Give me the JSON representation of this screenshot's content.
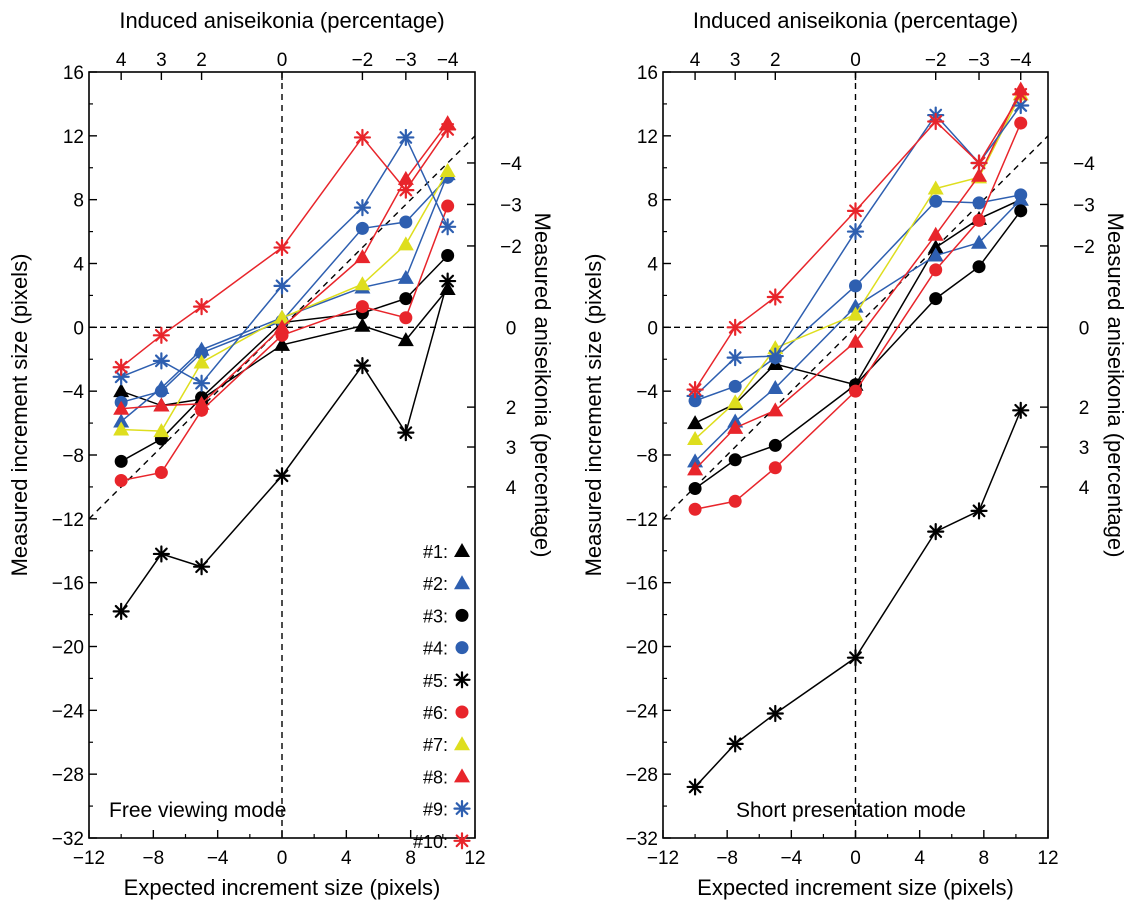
{
  "chart_data": [
    {
      "type": "line",
      "mode_label": "Free viewing mode",
      "xlabel": "Expected increment size (pixels)",
      "ylabel": "Measured increment size (pixels)",
      "top_xlabel": "Induced aniseikonia (percentage)",
      "right_ylabel": "Measured aniseikonia (percentage)",
      "xlim": [
        -12,
        12
      ],
      "ylim": [
        -32,
        16
      ],
      "x_ticks": [
        "-12",
        "-8",
        "-4",
        "0",
        "4",
        "8",
        "12"
      ],
      "y_ticks": [
        "16",
        "12",
        "8",
        "4",
        "0",
        "-4",
        "-8",
        "-12",
        "-16",
        "-20",
        "-24",
        "-28",
        "-32"
      ],
      "top_ticks": [
        {
          "x": -10.0,
          "label": "4"
        },
        {
          "x": -7.5,
          "label": "3"
        },
        {
          "x": -5.0,
          "label": "2"
        },
        {
          "x": 0,
          "label": "0"
        },
        {
          "x": 5.0,
          "label": "-2"
        },
        {
          "x": 7.7,
          "label": "-3"
        },
        {
          "x": 10.3,
          "label": "-4"
        }
      ],
      "right_ticks": [
        {
          "y": 10.3,
          "label": "-4"
        },
        {
          "y": 7.7,
          "label": "-3"
        },
        {
          "y": 5.1,
          "label": "-2"
        },
        {
          "y": 0,
          "label": "0"
        },
        {
          "y": -5.0,
          "label": "2"
        },
        {
          "y": -7.5,
          "label": "3"
        },
        {
          "y": -10.0,
          "label": "4"
        }
      ],
      "x": [
        -10.0,
        -7.5,
        -5.0,
        0,
        5.0,
        7.7,
        10.3
      ],
      "reference_lines": [
        "x=0",
        "y=0",
        "y=x"
      ],
      "series": [
        {
          "name": "#1:",
          "marker": "triangle",
          "color": "#000000",
          "values": [
            -4.0,
            -4.9,
            -4.5,
            -1.1,
            0.1,
            -0.8,
            2.4
          ]
        },
        {
          "name": "#2:",
          "marker": "triangle",
          "color": "#2e5fb0",
          "values": [
            -5.9,
            -3.8,
            -1.4,
            0.6,
            2.5,
            3.1,
            9.6
          ]
        },
        {
          "name": "#3:",
          "marker": "circle",
          "color": "#000000",
          "values": [
            -8.4,
            -7.0,
            -4.4,
            0.3,
            0.9,
            1.8,
            4.5
          ]
        },
        {
          "name": "#4:",
          "marker": "circle",
          "color": "#2e5fb0",
          "values": [
            -4.7,
            -4.0,
            -1.6,
            0.4,
            6.2,
            6.6,
            9.4
          ]
        },
        {
          "name": "#5:",
          "marker": "asterisk",
          "color": "#000000",
          "values": [
            -17.8,
            -14.2,
            -15.0,
            -9.3,
            -2.4,
            -6.6,
            2.9
          ]
        },
        {
          "name": "#6:",
          "marker": "circle",
          "color": "#e8252b",
          "values": [
            -9.6,
            -9.1,
            -5.2,
            -0.5,
            1.3,
            0.6,
            7.6
          ]
        },
        {
          "name": "#7:",
          "marker": "triangle",
          "color": "#dede1e",
          "values": [
            -6.4,
            -6.5,
            -2.2,
            0.6,
            2.7,
            5.2,
            9.8
          ]
        },
        {
          "name": "#8:",
          "marker": "triangle",
          "color": "#e8252b",
          "values": [
            -5.1,
            -4.9,
            -4.8,
            0.0,
            4.4,
            9.3,
            12.8
          ]
        },
        {
          "name": "#9:",
          "marker": "asterisk",
          "color": "#2e5fb0",
          "values": [
            -3.1,
            -2.1,
            -3.5,
            2.6,
            7.5,
            11.9,
            6.3
          ]
        },
        {
          "name": "#10:",
          "marker": "asterisk",
          "color": "#e8252b",
          "values": [
            -2.5,
            -0.5,
            1.3,
            5.0,
            11.9,
            8.6,
            12.4
          ]
        }
      ]
    },
    {
      "type": "line",
      "mode_label": "Short presentation mode",
      "xlabel": "Expected increment size (pixels)",
      "ylabel": "Measured increment size (pixels)",
      "top_xlabel": "Induced aniseikonia (percentage)",
      "right_ylabel": "Measured aniseikonia (percentage)",
      "xlim": [
        -12,
        12
      ],
      "ylim": [
        -32,
        16
      ],
      "x_ticks": [
        "-12",
        "-8",
        "-4",
        "0",
        "4",
        "8",
        "12"
      ],
      "y_ticks": [
        "16",
        "12",
        "8",
        "4",
        "0",
        "-4",
        "-8",
        "-12",
        "-16",
        "-20",
        "-24",
        "-28",
        "-32"
      ],
      "top_ticks": [
        {
          "x": -10.0,
          "label": "4"
        },
        {
          "x": -7.5,
          "label": "3"
        },
        {
          "x": -5.0,
          "label": "2"
        },
        {
          "x": 0,
          "label": "0"
        },
        {
          "x": 5.0,
          "label": "-2"
        },
        {
          "x": 7.7,
          "label": "-3"
        },
        {
          "x": 10.3,
          "label": "-4"
        }
      ],
      "right_ticks": [
        {
          "y": 10.3,
          "label": "-4"
        },
        {
          "y": 7.7,
          "label": "-3"
        },
        {
          "y": 5.1,
          "label": "-2"
        },
        {
          "y": 0,
          "label": "0"
        },
        {
          "y": -5.0,
          "label": "2"
        },
        {
          "y": -7.5,
          "label": "3"
        },
        {
          "y": -10.0,
          "label": "4"
        }
      ],
      "x": [
        -10.0,
        -7.5,
        -5.0,
        0,
        5.0,
        7.7,
        10.3
      ],
      "reference_lines": [
        "x=0",
        "y=0",
        "y=x"
      ],
      "series": [
        {
          "name": "#1:",
          "marker": "triangle",
          "color": "#000000",
          "values": [
            -6.0,
            -4.8,
            -2.3,
            -3.6,
            5.0,
            6.8,
            8.0
          ]
        },
        {
          "name": "#2:",
          "marker": "triangle",
          "color": "#2e5fb0",
          "values": [
            -8.4,
            -5.9,
            -3.8,
            1.3,
            4.5,
            5.3,
            8.0
          ]
        },
        {
          "name": "#3:",
          "marker": "circle",
          "color": "#000000",
          "values": [
            -10.1,
            -8.3,
            -7.4,
            -3.6,
            1.8,
            3.8,
            7.3
          ]
        },
        {
          "name": "#4:",
          "marker": "circle",
          "color": "#2e5fb0",
          "values": [
            -4.6,
            -3.7,
            -1.9,
            2.6,
            7.9,
            7.8,
            8.3
          ]
        },
        {
          "name": "#5:",
          "marker": "asterisk",
          "color": "#000000",
          "values": [
            -28.8,
            -26.1,
            -24.2,
            -20.7,
            -12.8,
            -11.5,
            -5.2
          ]
        },
        {
          "name": "#6:",
          "marker": "circle",
          "color": "#e8252b",
          "values": [
            -11.4,
            -10.9,
            -8.8,
            -4.0,
            3.6,
            6.7,
            12.8
          ]
        },
        {
          "name": "#7:",
          "marker": "triangle",
          "color": "#dede1e",
          "values": [
            -7.0,
            -4.7,
            -1.3,
            0.8,
            8.7,
            9.4,
            14.6
          ]
        },
        {
          "name": "#8:",
          "marker": "triangle",
          "color": "#e8252b",
          "values": [
            -8.9,
            -6.3,
            -5.2,
            -0.9,
            5.8,
            9.5,
            14.9
          ]
        },
        {
          "name": "#9:",
          "marker": "asterisk",
          "color": "#2e5fb0",
          "values": [
            -4.3,
            -1.9,
            -1.8,
            6.0,
            13.3,
            10.3,
            13.9
          ]
        },
        {
          "name": "#10:",
          "marker": "asterisk",
          "color": "#e8252b",
          "values": [
            -3.9,
            0.0,
            1.9,
            7.3,
            12.9,
            10.3,
            14.6
          ]
        }
      ]
    }
  ]
}
